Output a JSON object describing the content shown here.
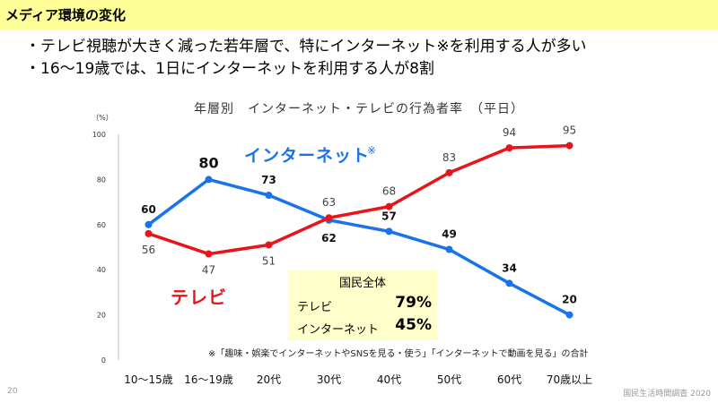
{
  "header": {
    "title": "メディア環境の変化"
  },
  "bullets": [
    "・テレビ視聴が大きく減った若年層で、特にインターネット※を利用する人が多い",
    "・16～19歳では、1日にインターネットを利用する人が8割"
  ],
  "chart_data": {
    "type": "line",
    "title": "年層別　インターネット・テレビの行為者率　（平日）",
    "ylabel": "（%）",
    "ylim": [
      0,
      100
    ],
    "yticks": [
      "0",
      "20",
      "40",
      "60",
      "80",
      "100"
    ],
    "categories": [
      "10～15歳",
      "16～19歳",
      "20代",
      "30代",
      "40代",
      "50代",
      "60代",
      "70歳以上"
    ],
    "series": [
      {
        "name": "インターネット",
        "name_suffix": "※",
        "color": "#1a73e8",
        "values": [
          60,
          80,
          73,
          62,
          57,
          49,
          34,
          20
        ]
      },
      {
        "name": "テレビ",
        "color": "#e8141a",
        "values": [
          56,
          47,
          51,
          63,
          68,
          83,
          94,
          95
        ]
      }
    ],
    "grid": false
  },
  "summary": {
    "title": "国民全体",
    "rows": [
      {
        "label": "テレビ",
        "value": "79%"
      },
      {
        "label": "インターネット",
        "value": "45%"
      }
    ]
  },
  "note": "※「趣味・娯楽でインターネットやSNSを見る・使う」「インターネットで動画を見る」の合計",
  "footer": {
    "page": "20",
    "source": "国民生活時間調査 2020"
  }
}
